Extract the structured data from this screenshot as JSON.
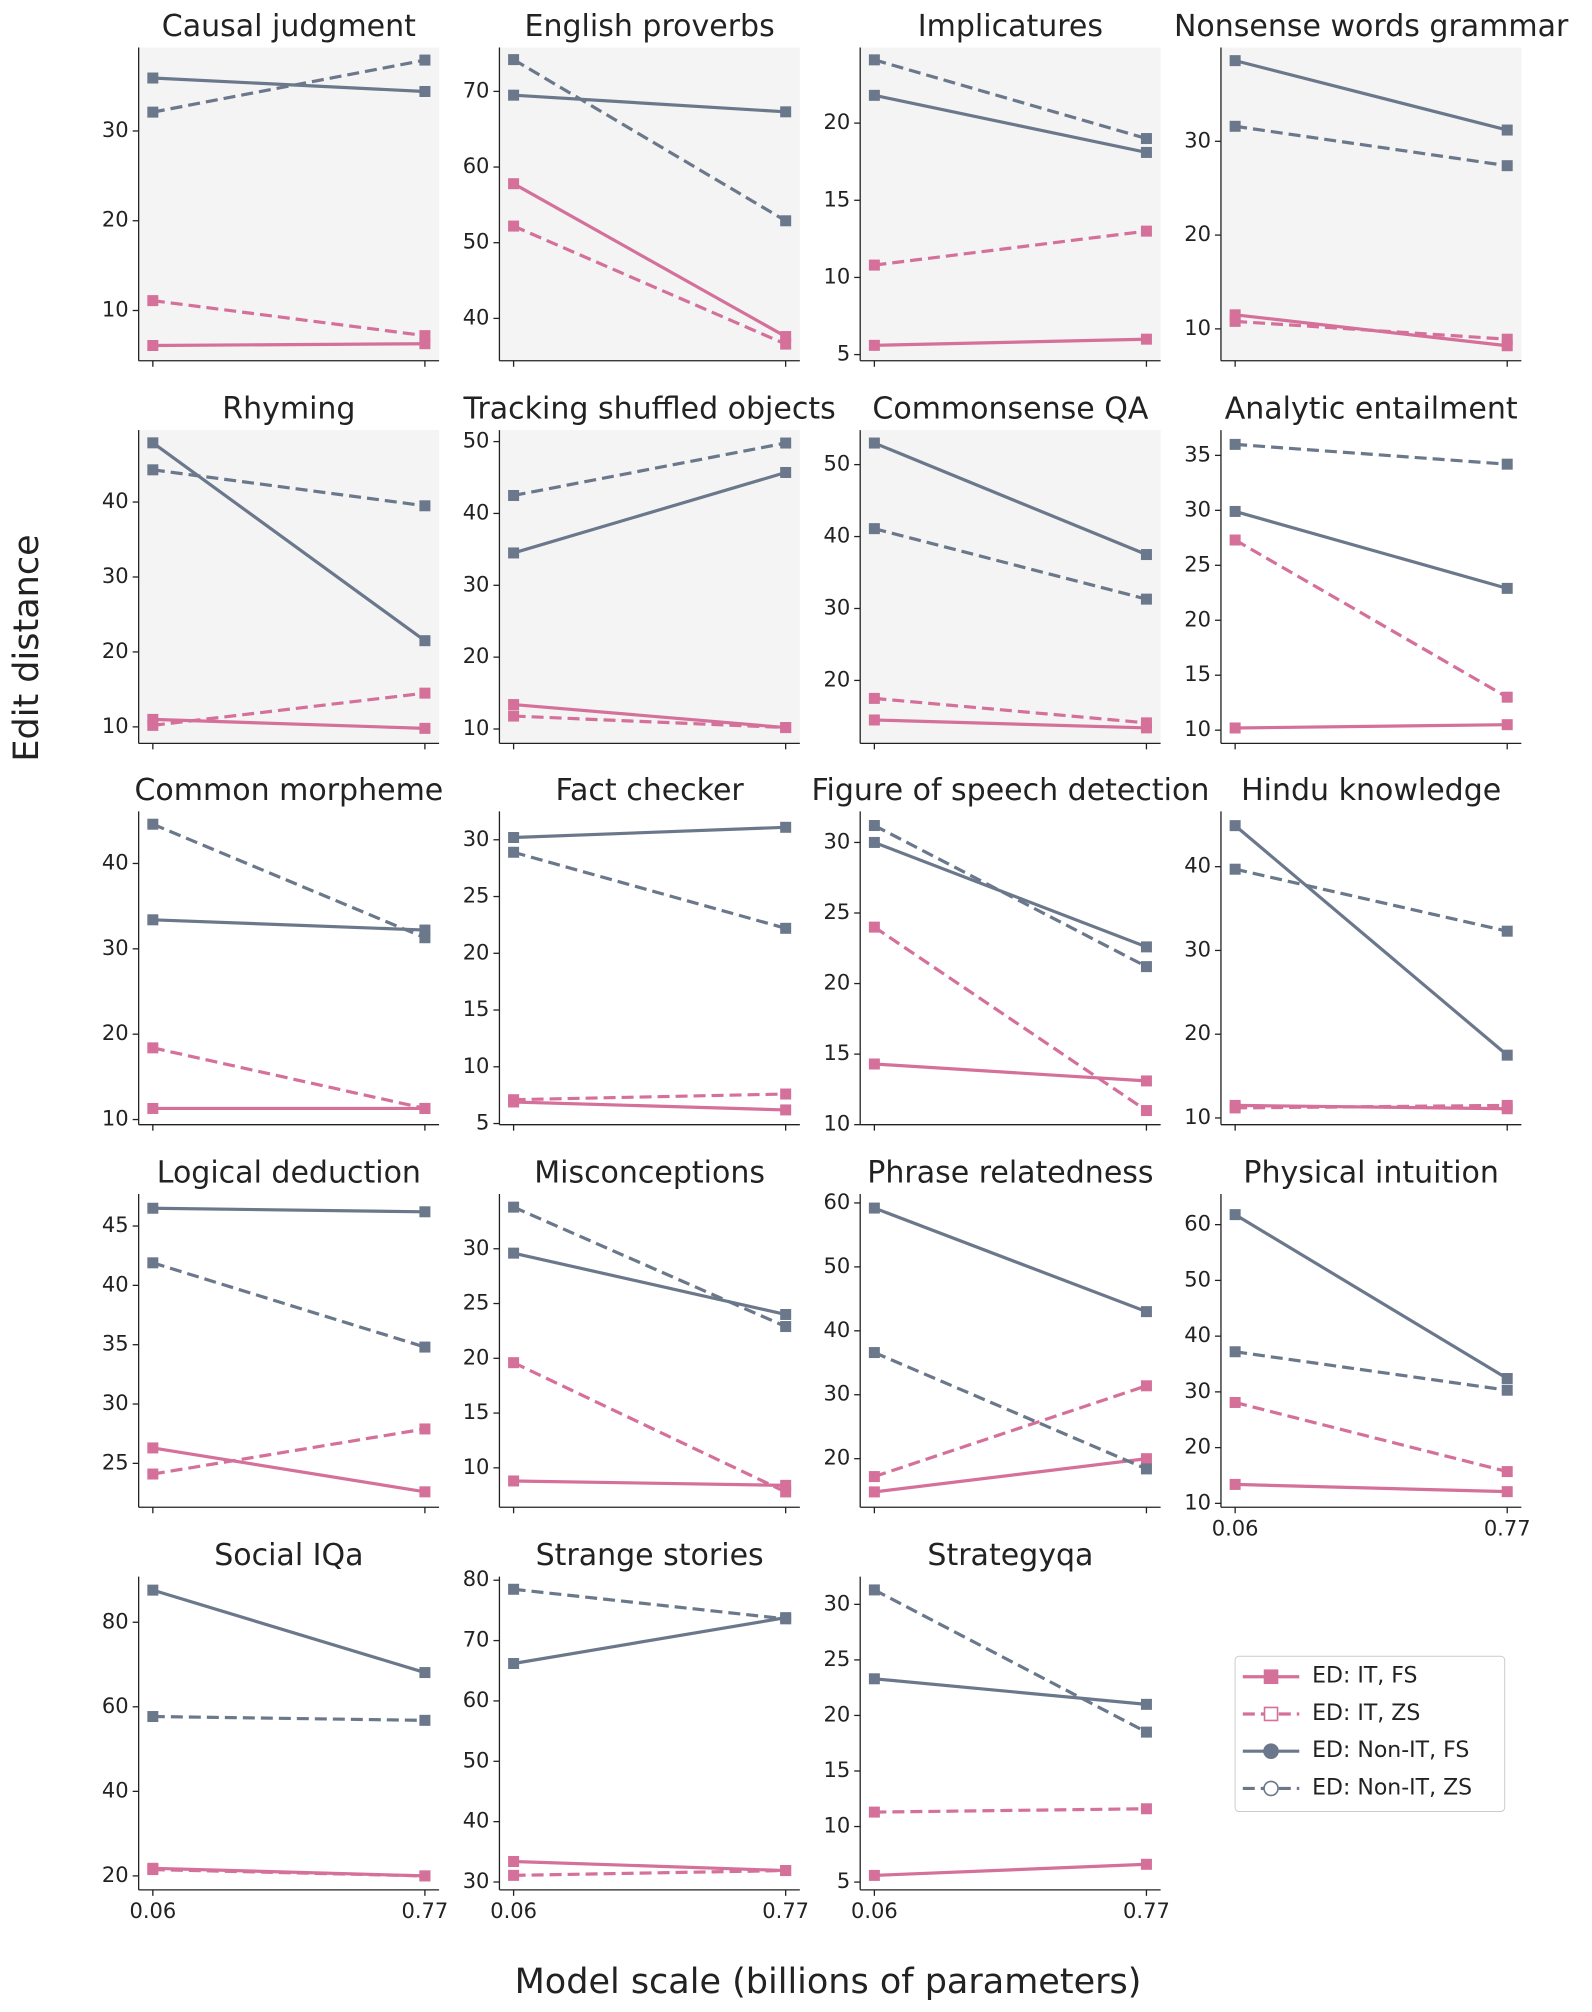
{
  "figure": {
    "xlabel": "Model scale (billions of parameters)",
    "ylabel": "Edit distance"
  },
  "legend": {
    "entries": [
      {
        "name": "ED: IT, FS",
        "color": "#d4709a",
        "dash": "solid",
        "marker": "square",
        "filled": true
      },
      {
        "name": "ED: IT, ZS",
        "color": "#d4709a",
        "dash": "dashed",
        "marker": "square",
        "filled": false
      },
      {
        "name": "ED: Non-IT, FS",
        "color": "#6b788b",
        "dash": "solid",
        "marker": "circle",
        "filled": true
      },
      {
        "name": "ED: Non-IT, ZS",
        "color": "#6b788b",
        "dash": "dashed",
        "marker": "circle",
        "filled": false
      }
    ]
  },
  "chart_data": [
    {
      "type": "line",
      "title": "Causal judgment",
      "x": [
        0.06,
        0.77
      ],
      "xlim": [
        0.023,
        0.807
      ],
      "xticks": [
        0.06,
        0.77
      ],
      "show_xticklabels": false,
      "background": "#f4f4f4",
      "ylim": [
        4.4,
        39.3
      ],
      "yticks": [
        10,
        20,
        30
      ],
      "series": [
        {
          "values": [
            6.1,
            6.3
          ]
        },
        {
          "values": [
            11.1,
            7.2
          ]
        },
        {
          "values": [
            35.9,
            34.4
          ]
        },
        {
          "values": [
            32.1,
            37.9
          ]
        }
      ]
    },
    {
      "type": "line",
      "title": "English proverbs",
      "x": [
        0.06,
        0.77
      ],
      "xlim": [
        0.023,
        0.807
      ],
      "xticks": [
        0.06,
        0.77
      ],
      "show_xticklabels": false,
      "background": "#f4f4f4",
      "ylim": [
        34.4,
        75.8
      ],
      "yticks": [
        40,
        50,
        60,
        70
      ],
      "series": [
        {
          "values": [
            57.8,
            37.6
          ]
        },
        {
          "values": [
            52.2,
            36.6
          ]
        },
        {
          "values": [
            69.5,
            67.3
          ]
        },
        {
          "values": [
            74.2,
            52.9
          ]
        }
      ]
    },
    {
      "type": "line",
      "title": "Implicatures",
      "x": [
        0.06,
        0.77
      ],
      "xlim": [
        0.023,
        0.807
      ],
      "xticks": [
        0.06,
        0.77
      ],
      "show_xticklabels": false,
      "background": "#f4f4f4",
      "ylim": [
        4.6,
        24.9
      ],
      "yticks": [
        5,
        10,
        15,
        20
      ],
      "series": [
        {
          "values": [
            5.6,
            6.0
          ]
        },
        {
          "values": [
            10.8,
            13.0
          ]
        },
        {
          "values": [
            21.8,
            18.1
          ]
        },
        {
          "values": [
            24.1,
            19.0
          ]
        }
      ]
    },
    {
      "type": "line",
      "title": "Nonsense words grammar",
      "x": [
        0.06,
        0.77
      ],
      "xlim": [
        0.023,
        0.807
      ],
      "xticks": [
        0.06,
        0.77
      ],
      "show_xticklabels": false,
      "background": "#f4f4f4",
      "ylim": [
        6.6,
        40
      ],
      "yticks": [
        10,
        20,
        30
      ],
      "series": [
        {
          "values": [
            11.5,
            8.2
          ]
        },
        {
          "values": [
            10.8,
            8.9
          ]
        },
        {
          "values": [
            38.6,
            31.2
          ]
        },
        {
          "values": [
            31.6,
            27.4
          ]
        }
      ]
    },
    {
      "type": "line",
      "title": "Rhyming",
      "x": [
        0.06,
        0.77
      ],
      "xlim": [
        0.023,
        0.807
      ],
      "xticks": [
        0.06,
        0.77
      ],
      "show_xticklabels": false,
      "background": "#f4f4f4",
      "ylim": [
        7.8,
        49.6
      ],
      "yticks": [
        10,
        20,
        30,
        40
      ],
      "series": [
        {
          "values": [
            11.0,
            9.8
          ]
        },
        {
          "values": [
            10.2,
            14.5
          ]
        },
        {
          "values": [
            47.9,
            21.5
          ]
        },
        {
          "values": [
            44.3,
            39.5
          ]
        }
      ]
    },
    {
      "type": "line",
      "title": "Tracking shuffled objects",
      "x": [
        0.06,
        0.77
      ],
      "xlim": [
        0.023,
        0.807
      ],
      "xticks": [
        0.06,
        0.77
      ],
      "show_xticklabels": false,
      "background": "#f4f4f4",
      "ylim": [
        8.0,
        51.6
      ],
      "yticks": [
        10,
        20,
        30,
        40,
        50
      ],
      "series": [
        {
          "values": [
            13.4,
            10.2
          ]
        },
        {
          "values": [
            11.8,
            10.2
          ]
        },
        {
          "values": [
            34.5,
            45.7
          ]
        },
        {
          "values": [
            42.5,
            49.8
          ]
        }
      ]
    },
    {
      "type": "line",
      "title": "Commonsense QA",
      "x": [
        0.06,
        0.77
      ],
      "xlim": [
        0.023,
        0.807
      ],
      "xticks": [
        0.06,
        0.77
      ],
      "show_xticklabels": false,
      "background": "#f4f4f4",
      "ylim": [
        11.25,
        54.8
      ],
      "yticks": [
        20,
        30,
        40,
        50
      ],
      "series": [
        {
          "values": [
            14.5,
            13.4
          ]
        },
        {
          "values": [
            17.5,
            14.1
          ]
        },
        {
          "values": [
            53.0,
            37.5
          ]
        },
        {
          "values": [
            41.1,
            31.3
          ]
        }
      ]
    },
    {
      "type": "line",
      "title": "Analytic entailment",
      "x": [
        0.06,
        0.77
      ],
      "xlim": [
        0.023,
        0.807
      ],
      "xticks": [
        0.06,
        0.77
      ],
      "show_xticklabels": false,
      "ylim": [
        8.8,
        37.3
      ],
      "yticks": [
        10,
        15,
        20,
        25,
        30,
        35
      ],
      "series": [
        {
          "values": [
            10.2,
            10.5
          ]
        },
        {
          "values": [
            27.3,
            13.0
          ]
        },
        {
          "values": [
            29.9,
            22.9
          ]
        },
        {
          "values": [
            36.0,
            34.2
          ]
        }
      ]
    },
    {
      "type": "line",
      "title": "Common morpheme",
      "x": [
        0.06,
        0.77
      ],
      "xlim": [
        0.023,
        0.807
      ],
      "xticks": [
        0.06,
        0.77
      ],
      "show_xticklabels": false,
      "ylim": [
        9.4,
        46.1
      ],
      "yticks": [
        10,
        20,
        30,
        40
      ],
      "series": [
        {
          "values": [
            11.3,
            11.3
          ]
        },
        {
          "values": [
            18.4,
            11.3
          ]
        },
        {
          "values": [
            33.4,
            32.2
          ]
        },
        {
          "values": [
            44.6,
            31.3
          ]
        }
      ]
    },
    {
      "type": "line",
      "title": "Fact checker",
      "x": [
        0.06,
        0.77
      ],
      "xlim": [
        0.023,
        0.807
      ],
      "xticks": [
        0.06,
        0.77
      ],
      "show_xticklabels": false,
      "ylim": [
        4.9,
        32.5
      ],
      "yticks": [
        5,
        10,
        15,
        20,
        25,
        30
      ],
      "series": [
        {
          "values": [
            6.9,
            6.2
          ]
        },
        {
          "values": [
            7.1,
            7.6
          ]
        },
        {
          "values": [
            30.2,
            31.1
          ]
        },
        {
          "values": [
            28.9,
            22.2
          ]
        }
      ]
    },
    {
      "type": "line",
      "title": "Figure of speech detection",
      "x": [
        0.06,
        0.77
      ],
      "xlim": [
        0.023,
        0.807
      ],
      "xticks": [
        0.06,
        0.77
      ],
      "show_xticklabels": false,
      "ylim": [
        10,
        32.2
      ],
      "yticks": [
        10,
        15,
        20,
        25,
        30
      ],
      "series": [
        {
          "values": [
            14.3,
            13.1
          ]
        },
        {
          "values": [
            24.0,
            11.0
          ]
        },
        {
          "values": [
            30.0,
            22.6
          ]
        },
        {
          "values": [
            31.2,
            21.2
          ]
        }
      ]
    },
    {
      "type": "line",
      "title": "Hindu knowledge",
      "x": [
        0.06,
        0.77
      ],
      "xlim": [
        0.023,
        0.807
      ],
      "xticks": [
        0.06,
        0.77
      ],
      "show_xticklabels": false,
      "ylim": [
        9.2,
        46.6
      ],
      "yticks": [
        10,
        20,
        30,
        40
      ],
      "series": [
        {
          "values": [
            11.5,
            11.1
          ]
        },
        {
          "values": [
            11.2,
            11.5
          ]
        },
        {
          "values": [
            44.9,
            17.5
          ]
        },
        {
          "values": [
            39.7,
            32.3
          ]
        }
      ]
    },
    {
      "type": "line",
      "title": "Logical deduction",
      "x": [
        0.06,
        0.77
      ],
      "xlim": [
        0.023,
        0.807
      ],
      "xticks": [
        0.06,
        0.77
      ],
      "show_xticklabels": false,
      "ylim": [
        21.3,
        47.7
      ],
      "yticks": [
        25,
        30,
        35,
        40,
        45
      ],
      "series": [
        {
          "values": [
            26.3,
            22.6
          ]
        },
        {
          "values": [
            24.1,
            27.9
          ]
        },
        {
          "values": [
            46.5,
            46.2
          ]
        },
        {
          "values": [
            41.9,
            34.8
          ]
        }
      ]
    },
    {
      "type": "line",
      "title": "Misconceptions",
      "x": [
        0.06,
        0.77
      ],
      "xlim": [
        0.023,
        0.807
      ],
      "xticks": [
        0.06,
        0.77
      ],
      "show_xticklabels": false,
      "ylim": [
        6.4,
        35.0
      ],
      "yticks": [
        10,
        15,
        20,
        25,
        30
      ],
      "series": [
        {
          "values": [
            8.8,
            8.4
          ]
        },
        {
          "values": [
            19.6,
            7.8
          ]
        },
        {
          "values": [
            29.6,
            24.0
          ]
        },
        {
          "values": [
            33.8,
            22.9
          ]
        }
      ]
    },
    {
      "type": "line",
      "title": "Phrase relatedness",
      "x": [
        0.06,
        0.77
      ],
      "xlim": [
        0.023,
        0.807
      ],
      "xticks": [
        0.06,
        0.77
      ],
      "show_xticklabels": false,
      "ylim": [
        12.4,
        61.4
      ],
      "yticks": [
        20,
        30,
        40,
        50,
        60
      ],
      "series": [
        {
          "values": [
            14.8,
            20.0
          ]
        },
        {
          "values": [
            17.2,
            31.4
          ]
        },
        {
          "values": [
            59.2,
            43.0
          ]
        },
        {
          "values": [
            36.6,
            18.4
          ]
        }
      ]
    },
    {
      "type": "line",
      "title": "Physical intuition",
      "x": [
        0.06,
        0.77
      ],
      "xlim": [
        0.023,
        0.807
      ],
      "xticks": [
        0.06,
        0.77
      ],
      "show_xticklabels": true,
      "ylim": [
        9.3,
        65.5
      ],
      "yticks": [
        10,
        20,
        30,
        40,
        50,
        60
      ],
      "series": [
        {
          "values": [
            13.4,
            12.1
          ]
        },
        {
          "values": [
            28.1,
            15.7
          ]
        },
        {
          "values": [
            61.8,
            32.4
          ]
        },
        {
          "values": [
            37.2,
            30.3
          ]
        }
      ]
    },
    {
      "type": "line",
      "title": "Social IQa",
      "x": [
        0.06,
        0.77
      ],
      "xlim": [
        0.023,
        0.807
      ],
      "xticks": [
        0.06,
        0.77
      ],
      "show_xticklabels": true,
      "ylim": [
        16.7,
        90.8
      ],
      "yticks": [
        20,
        40,
        60,
        80
      ],
      "series": [
        {
          "values": [
            21.8,
            20.0
          ]
        },
        {
          "values": [
            21.5,
            20.0
          ]
        },
        {
          "values": [
            87.6,
            68.1
          ]
        },
        {
          "values": [
            57.7,
            56.8
          ]
        }
      ]
    },
    {
      "type": "line",
      "title": "Strange stories",
      "x": [
        0.06,
        0.77
      ],
      "xlim": [
        0.023,
        0.807
      ],
      "xticks": [
        0.06,
        0.77
      ],
      "show_xticklabels": true,
      "ylim": [
        28.7,
        80.6
      ],
      "yticks": [
        30,
        40,
        50,
        60,
        70,
        80
      ],
      "series": [
        {
          "values": [
            33.4,
            31.9
          ]
        },
        {
          "values": [
            31.1,
            31.9
          ]
        },
        {
          "values": [
            66.2,
            73.8
          ]
        },
        {
          "values": [
            78.5,
            73.6
          ]
        }
      ]
    },
    {
      "type": "line",
      "title": "Strategyqa",
      "x": [
        0.06,
        0.77
      ],
      "xlim": [
        0.023,
        0.807
      ],
      "xticks": [
        0.06,
        0.77
      ],
      "show_xticklabels": true,
      "ylim": [
        4.3,
        32.5
      ],
      "yticks": [
        5,
        10,
        15,
        20,
        25,
        30
      ],
      "series": [
        {
          "values": [
            5.6,
            6.6
          ]
        },
        {
          "values": [
            11.3,
            11.6
          ]
        },
        {
          "values": [
            23.3,
            21.0
          ]
        },
        {
          "values": [
            31.3,
            18.5
          ]
        }
      ]
    }
  ]
}
